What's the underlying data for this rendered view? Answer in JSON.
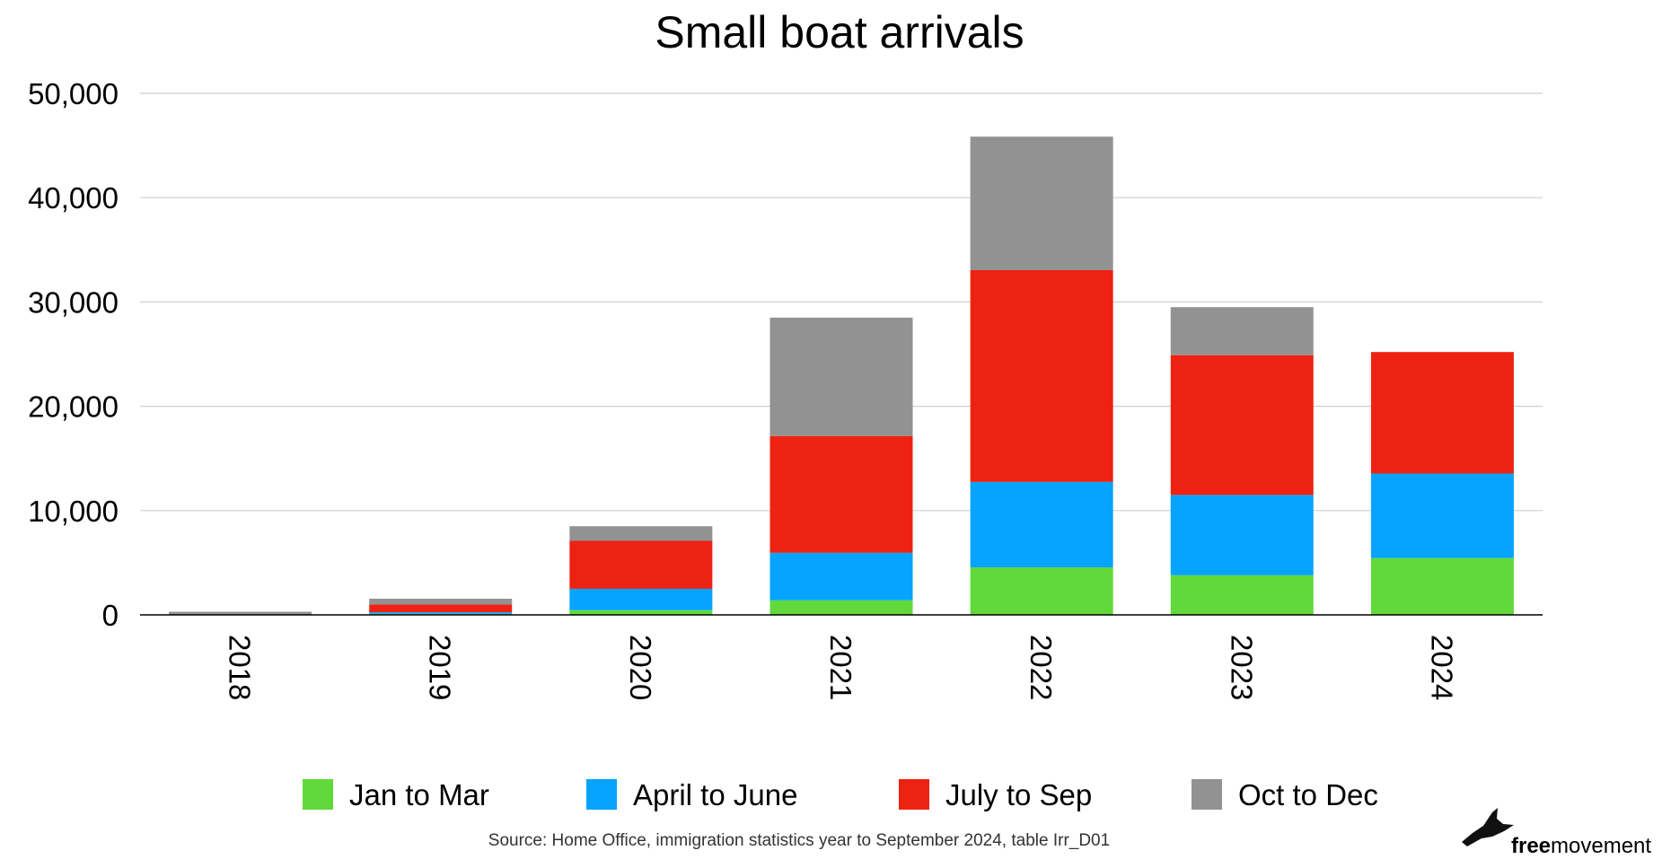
{
  "chart_data": {
    "type": "bar",
    "stacked": true,
    "title": "Small boat arrivals",
    "categories": [
      "2018",
      "2019",
      "2020",
      "2021",
      "2022",
      "2023",
      "2024"
    ],
    "series": [
      {
        "name": "Jan to Mar",
        "color": "#62d93a",
        "values": [
          0,
          100,
          450,
          1400,
          4550,
          3800,
          5450
        ]
      },
      {
        "name": "April to June",
        "color": "#06a4ff",
        "values": [
          0,
          150,
          2050,
          4550,
          8200,
          7700,
          8100
        ]
      },
      {
        "name": "July to Sep",
        "color": "#ee2212",
        "values": [
          0,
          750,
          4600,
          11200,
          20300,
          13400,
          11650
        ]
      },
      {
        "name": "Oct to Dec",
        "color": "#929292",
        "values": [
          300,
          550,
          1400,
          11350,
          12800,
          4600,
          0
        ]
      }
    ],
    "ylim": [
      0,
      50000
    ],
    "yticks": [
      0,
      10000,
      20000,
      30000,
      40000,
      50000
    ],
    "ytick_labels": [
      "0",
      "10,000",
      "20,000",
      "30,000",
      "40,000",
      "50,000"
    ],
    "xlabel": "",
    "ylabel": "",
    "grid": true,
    "legend_position": "bottom"
  },
  "source": "Source: Home Office, immigration statistics year to September 2024, table Irr_D01",
  "brand": {
    "prefix": "free",
    "suffix": "movement",
    "icon": "bird-icon"
  }
}
